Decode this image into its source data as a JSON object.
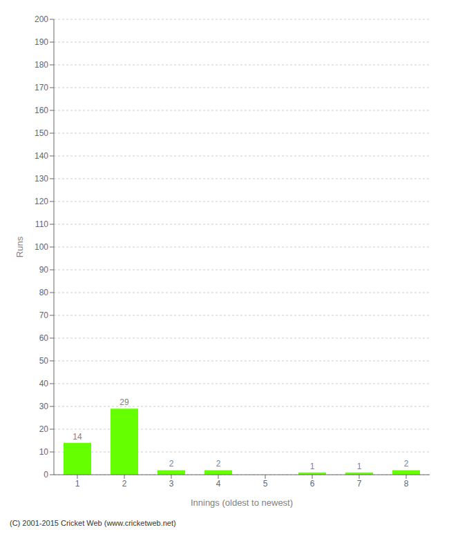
{
  "chart_data": {
    "type": "bar",
    "categories": [
      "1",
      "2",
      "3",
      "4",
      "5",
      "6",
      "7",
      "8"
    ],
    "values": [
      14,
      29,
      2,
      2,
      0,
      1,
      1,
      2
    ],
    "color": "#66ff00",
    "xlabel": "Innings (oldest to newest)",
    "ylabel": "Runs",
    "ylim": [
      0,
      200
    ],
    "yticks": [
      0,
      10,
      20,
      30,
      40,
      50,
      60,
      70,
      80,
      90,
      100,
      110,
      120,
      130,
      140,
      150,
      160,
      170,
      180,
      190,
      200
    ],
    "grid": true,
    "data_labels": true,
    "annotations": [
      "(C) 2001-2015 Cricket Web (www.cricketweb.net)"
    ]
  }
}
